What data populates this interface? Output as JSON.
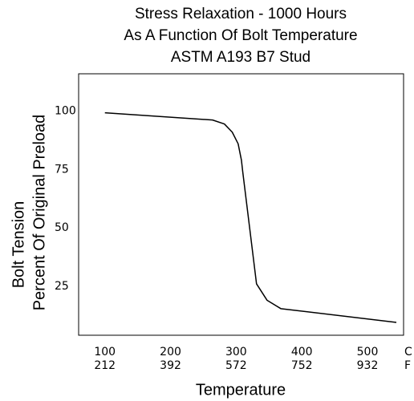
{
  "chart_data": {
    "type": "line",
    "title": [
      "Stress Relaxation - 1000 Hours",
      "As A Function Of Bolt Temperature",
      "ASTM A193 B7 Stud"
    ],
    "xlabel": "Temperature",
    "ylabel": [
      "Bolt Tension",
      "Percent Of Original Preload"
    ],
    "x": [
      100,
      264,
      282,
      294,
      303,
      308,
      310,
      331,
      347,
      368,
      544
    ],
    "y": [
      99.3,
      96.2,
      94.5,
      91,
      86,
      79,
      74,
      26,
      19,
      15.4,
      9.5
    ],
    "color": "#000000",
    "xlim": [
      60,
      555
    ],
    "xticks": [
      100,
      200,
      300,
      400,
      500
    ],
    "x_secondary_labels": [
      212,
      392,
      572,
      752,
      932
    ],
    "x_units": [
      "C",
      "F"
    ],
    "ylim": [
      4,
      116
    ],
    "yticks": [
      100,
      75,
      50,
      25
    ],
    "grid": false
  }
}
